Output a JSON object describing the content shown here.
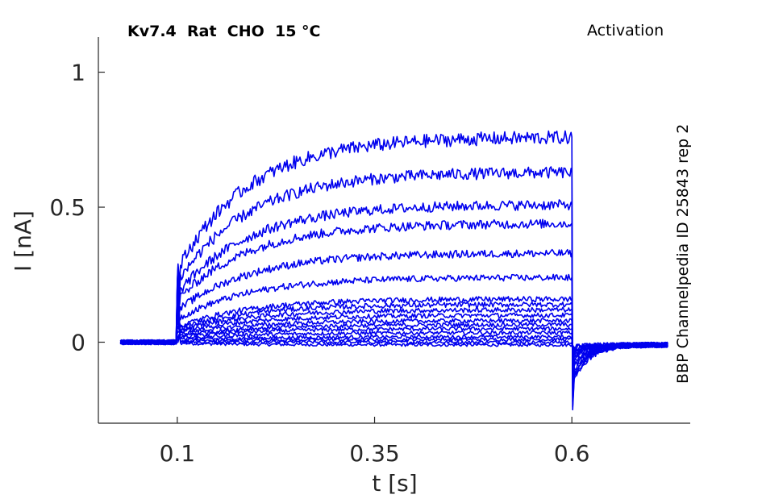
{
  "chart_data": {
    "type": "line",
    "title": "Kv7.4  Rat  CHO  15 °C",
    "protocol": "Activation",
    "side_label": "BBP Channelpedia ID 25843 rep 2",
    "xlabel": "t [s]",
    "ylabel": "I [nA]",
    "xlim": [
      0.0,
      0.75
    ],
    "ylim": [
      -0.3,
      1.13
    ],
    "x_ticks": [
      {
        "value": 0.1,
        "label": "0.1"
      },
      {
        "value": 0.35,
        "label": "0.35"
      },
      {
        "value": 0.6,
        "label": "0.6"
      }
    ],
    "y_ticks": [
      {
        "value": 0,
        "label": "0"
      },
      {
        "value": 0.5,
        "label": "0.5"
      },
      {
        "value": 1,
        "label": "1"
      }
    ],
    "line_color": "#0000ee",
    "pulse": {
      "start": 0.1,
      "end": 0.6,
      "trace_start": 0.028,
      "trace_end": 0.722
    },
    "traces": [
      {
        "steady": -0.01,
        "spike": 0.0,
        "tail": -0.01
      },
      {
        "steady": 0.0,
        "spike": 0.01,
        "tail": -0.015
      },
      {
        "steady": 0.01,
        "spike": 0.02,
        "tail": -0.02
      },
      {
        "steady": 0.02,
        "spike": 0.04,
        "tail": -0.03
      },
      {
        "steady": 0.035,
        "spike": 0.06,
        "tail": -0.04
      },
      {
        "steady": 0.05,
        "spike": 0.08,
        "tail": -0.05
      },
      {
        "steady": 0.065,
        "spike": 0.1,
        "tail": -0.06
      },
      {
        "steady": 0.08,
        "spike": 0.12,
        "tail": -0.07
      },
      {
        "steady": 0.1,
        "spike": 0.14,
        "tail": -0.08
      },
      {
        "steady": 0.12,
        "spike": 0.16,
        "tail": -0.1
      },
      {
        "steady": 0.14,
        "spike": 0.18,
        "tail": -0.12
      },
      {
        "steady": 0.16,
        "spike": 0.2,
        "tail": -0.14
      },
      {
        "steady": 0.24,
        "spike": 0.22,
        "tail": -0.16
      },
      {
        "steady": 0.33,
        "spike": 0.24,
        "tail": -0.18
      },
      {
        "steady": 0.44,
        "spike": 0.26,
        "tail": -0.2
      },
      {
        "steady": 0.51,
        "spike": 0.27,
        "tail": -0.22
      },
      {
        "steady": 0.63,
        "spike": 0.28,
        "tail": -0.24
      },
      {
        "steady": 0.76,
        "spike": 0.29,
        "tail": -0.25
      }
    ]
  }
}
